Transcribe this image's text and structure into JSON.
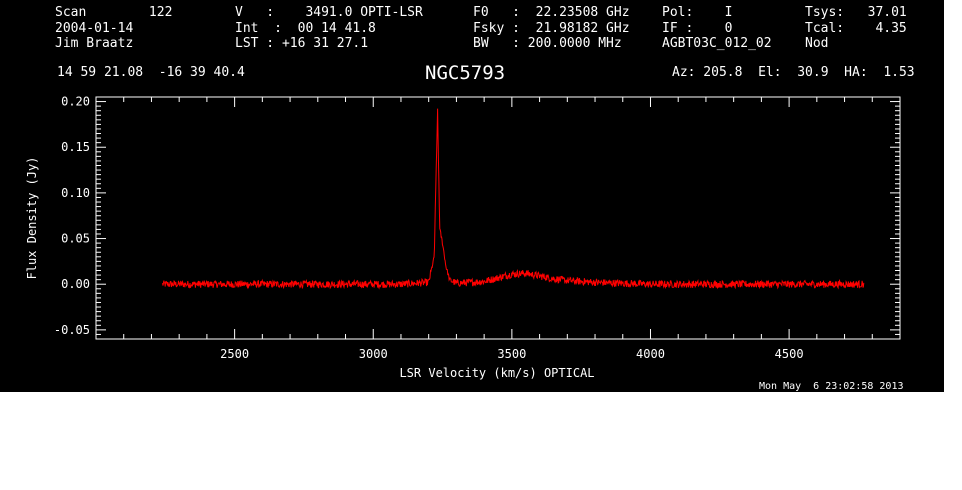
{
  "header": {
    "scan": "Scan        122",
    "date": "2004-01-14",
    "observer": "Jim Braatz",
    "velocity": "V   :    3491.0 OPTI-LSR",
    "int": "Int  :  00 14 41.8",
    "lst": "LST : +16 31 27.1",
    "f0": "F0   :  22.23508 GHz",
    "fsky": "Fsky :  21.98182 GHz",
    "bw": "BW   : 200.0000 MHz",
    "pol": "Pol:    I",
    "if": "IF :    0",
    "proc": "AGBT03C_012_02",
    "tsys": "Tsys:   37.01",
    "tcal": "Tcal:    4.35",
    "mode": "Nod",
    "coords": "14 59 21.08  -16 39 40.4",
    "source": "NGC5793",
    "azelha": "Az: 205.8  El:  30.9  HA:  1.53",
    "timestamp": "Mon May  6 23:02:58 2013"
  },
  "chart_data": {
    "type": "line",
    "title": "NGC5793",
    "xlabel": "LSR Velocity (km/s) OPTICAL",
    "ylabel": "Flux Density (Jy)",
    "xlim": [
      2000,
      4900
    ],
    "ylim": [
      -0.06,
      0.205
    ],
    "xticks": [
      2500,
      3000,
      3500,
      4000,
      4500
    ],
    "yticks": [
      -0.05,
      0.0,
      0.05,
      0.1,
      0.15,
      0.2
    ],
    "ytick_labels": [
      "-0.05",
      "0.00",
      "0.05",
      "0.10",
      "0.15",
      "0.20"
    ],
    "grid": false,
    "series": [
      {
        "color": "#ff0000",
        "noise_rms": 0.004,
        "x": [
          2240,
          2500,
          2800,
          3100,
          3200,
          3220,
          3232,
          3240,
          3250,
          3262,
          3275,
          3300,
          3400,
          3450,
          3500,
          3550,
          3600,
          3650,
          3700,
          3800,
          4000,
          4200,
          4500,
          4770
        ],
        "values": [
          0.0,
          0.0,
          0.0,
          0.0,
          0.002,
          0.03,
          0.19,
          0.06,
          0.045,
          0.02,
          0.005,
          0.001,
          0.003,
          0.007,
          0.011,
          0.012,
          0.009,
          0.006,
          0.004,
          0.002,
          0.0,
          0.0,
          0.0,
          0.0
        ]
      }
    ]
  }
}
